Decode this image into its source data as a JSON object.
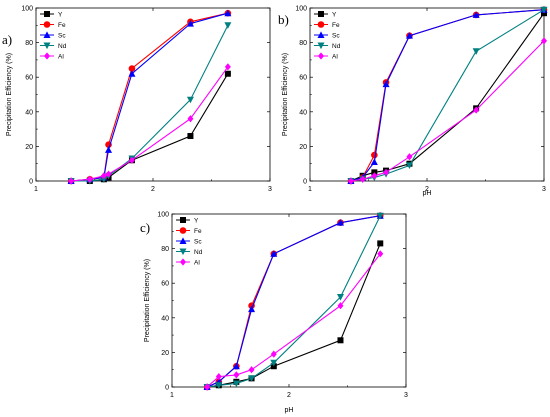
{
  "figure": {
    "panels": [
      "a)",
      "b)",
      "c)"
    ]
  },
  "chart_data": [
    {
      "type": "line",
      "panel_label": "a)",
      "xlabel": "",
      "ylabel": "Precipitation Efficiency (%)",
      "xlim": [
        1,
        3
      ],
      "ylim": [
        0,
        100
      ],
      "xticks": [
        "1",
        "2",
        "3"
      ],
      "yticks": [
        "0",
        "20",
        "40",
        "60",
        "80",
        "100"
      ],
      "legend_position": "top-left",
      "series": [
        {
          "name": "Y",
          "color": "#000000",
          "marker": "square",
          "x": [
            1.3,
            1.46,
            1.58,
            1.62,
            1.82,
            2.32,
            2.64
          ],
          "y": [
            0,
            0,
            1,
            2,
            12,
            26,
            62
          ]
        },
        {
          "name": "Fe",
          "color": "#ff0000",
          "marker": "circle",
          "x": [
            1.3,
            1.46,
            1.58,
            1.62,
            1.82,
            2.32,
            2.64
          ],
          "y": [
            0,
            1,
            2,
            21,
            65,
            92,
            97
          ]
        },
        {
          "name": "Sc",
          "color": "#0000ff",
          "marker": "triangle-up",
          "x": [
            1.3,
            1.46,
            1.58,
            1.62,
            1.82,
            2.32,
            2.64
          ],
          "y": [
            0,
            1,
            2,
            18,
            62,
            91,
            97
          ]
        },
        {
          "name": "Nd",
          "color": "#008080",
          "marker": "triangle-down",
          "x": [
            1.3,
            1.46,
            1.58,
            1.62,
            1.82,
            2.32,
            2.64
          ],
          "y": [
            0,
            0,
            1,
            3,
            13,
            47,
            90
          ]
        },
        {
          "name": "Al",
          "color": "#ff00ff",
          "marker": "diamond",
          "x": [
            1.3,
            1.46,
            1.58,
            1.62,
            1.82,
            2.32,
            2.64
          ],
          "y": [
            0,
            1,
            3,
            4,
            12,
            36,
            66
          ]
        }
      ]
    },
    {
      "type": "line",
      "panel_label": "b)",
      "xlabel": "pH",
      "ylabel": "Precipitation Efficiency (%)",
      "xlim": [
        1,
        3
      ],
      "ylim": [
        0,
        100
      ],
      "xticks": [
        "1",
        "2",
        "3"
      ],
      "yticks": [
        "0",
        "20",
        "40",
        "60",
        "80",
        "100"
      ],
      "legend_position": "top-left",
      "series": [
        {
          "name": "Y",
          "color": "#000000",
          "marker": "square",
          "x": [
            1.35,
            1.45,
            1.55,
            1.65,
            1.85,
            2.42,
            3.0
          ],
          "y": [
            0,
            3,
            5,
            6,
            10,
            42,
            97
          ]
        },
        {
          "name": "Fe",
          "color": "#ff0000",
          "marker": "circle",
          "x": [
            1.35,
            1.45,
            1.55,
            1.65,
            1.85,
            2.42,
            3.0
          ],
          "y": [
            0,
            2,
            15,
            57,
            84,
            96,
            99
          ]
        },
        {
          "name": "Sc",
          "color": "#0000ff",
          "marker": "triangle-up",
          "x": [
            1.35,
            1.45,
            1.55,
            1.65,
            1.85,
            2.42,
            3.0
          ],
          "y": [
            0,
            2,
            11,
            56,
            84,
            96,
            99
          ]
        },
        {
          "name": "Nd",
          "color": "#008080",
          "marker": "triangle-down",
          "x": [
            1.35,
            1.45,
            1.55,
            1.65,
            1.85,
            2.42,
            3.0
          ],
          "y": [
            0,
            1,
            2,
            4,
            9,
            75,
            99
          ]
        },
        {
          "name": "Al",
          "color": "#ff00ff",
          "marker": "diamond",
          "x": [
            1.35,
            1.45,
            1.55,
            1.65,
            1.85,
            2.42,
            3.0
          ],
          "y": [
            0,
            1,
            3,
            5,
            14,
            41,
            81
          ]
        }
      ]
    },
    {
      "type": "line",
      "panel_label": "c)",
      "xlabel": "pH",
      "ylabel": "Precipitation Efficiency (%)",
      "xlim": [
        1,
        3
      ],
      "ylim": [
        0,
        100
      ],
      "xticks": [
        "1",
        "2",
        "3"
      ],
      "yticks": [
        "0",
        "20",
        "40",
        "60",
        "80",
        "100"
      ],
      "legend_position": "top-left",
      "series": [
        {
          "name": "Y",
          "color": "#000000",
          "marker": "square",
          "x": [
            1.3,
            1.4,
            1.55,
            1.68,
            1.87,
            2.44,
            2.78
          ],
          "y": [
            0,
            1,
            3,
            5,
            12,
            27,
            83
          ]
        },
        {
          "name": "Fe",
          "color": "#ff0000",
          "marker": "circle",
          "x": [
            1.3,
            1.4,
            1.55,
            1.68,
            1.87,
            2.44,
            2.78
          ],
          "y": [
            0,
            3,
            12,
            47,
            77,
            95,
            99
          ]
        },
        {
          "name": "Sc",
          "color": "#0000ff",
          "marker": "triangle-up",
          "x": [
            1.3,
            1.4,
            1.55,
            1.68,
            1.87,
            2.44,
            2.78
          ],
          "y": [
            0,
            3,
            12,
            45,
            77,
            95,
            99
          ]
        },
        {
          "name": "Nd",
          "color": "#008080",
          "marker": "triangle-down",
          "x": [
            1.3,
            1.4,
            1.55,
            1.68,
            1.87,
            2.44,
            2.78
          ],
          "y": [
            0,
            1,
            2,
            5,
            14,
            52,
            99
          ]
        },
        {
          "name": "Al",
          "color": "#ff00ff",
          "marker": "diamond",
          "x": [
            1.3,
            1.4,
            1.55,
            1.68,
            1.87,
            2.44,
            2.78
          ],
          "y": [
            0,
            6,
            7,
            10,
            19,
            47,
            77
          ]
        }
      ]
    }
  ]
}
